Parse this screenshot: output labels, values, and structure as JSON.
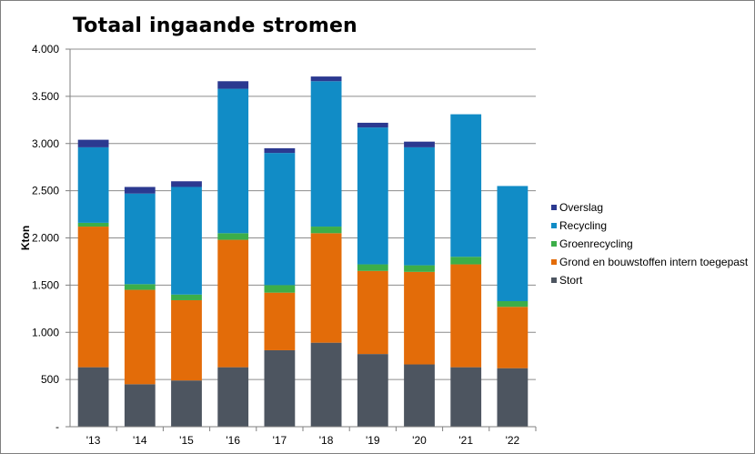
{
  "chart_data": {
    "type": "bar",
    "stacked": true,
    "title": "Totaal ingaande stromen",
    "xlabel": "",
    "ylabel": "Kton",
    "ylim": [
      0,
      4000
    ],
    "yticks": [
      0,
      500,
      1000,
      1500,
      2000,
      2500,
      3000,
      3500,
      4000
    ],
    "ytick_labels": [
      "-",
      "500",
      "1.000",
      "1.500",
      "2.000",
      "2.500",
      "3.000",
      "3.500",
      "4.000"
    ],
    "grid": true,
    "legend_position": "right",
    "categories": [
      "'13",
      "'14",
      "'15",
      "'16",
      "'17",
      "'18",
      "'19",
      "'20",
      "'21",
      "'22"
    ],
    "series": [
      {
        "name": "Stort",
        "color": "#4d5560",
        "values": [
          630,
          450,
          490,
          630,
          810,
          890,
          770,
          660,
          630,
          620
        ]
      },
      {
        "name": "Grond en bouwstoffen intern toegepast",
        "color": "#e36c09",
        "values": [
          1490,
          1000,
          850,
          1350,
          610,
          1160,
          880,
          980,
          1090,
          650
        ]
      },
      {
        "name": "Groenrecycling",
        "color": "#3cae49",
        "values": [
          40,
          60,
          60,
          70,
          80,
          70,
          70,
          70,
          80,
          60
        ]
      },
      {
        "name": "Recycling",
        "color": "#118cc6",
        "values": [
          800,
          960,
          1140,
          1530,
          1400,
          1540,
          1450,
          1250,
          1510,
          1220
        ]
      },
      {
        "name": "Overslag",
        "color": "#2b3990",
        "values": [
          80,
          70,
          60,
          80,
          50,
          50,
          50,
          60,
          0,
          0
        ]
      }
    ]
  }
}
